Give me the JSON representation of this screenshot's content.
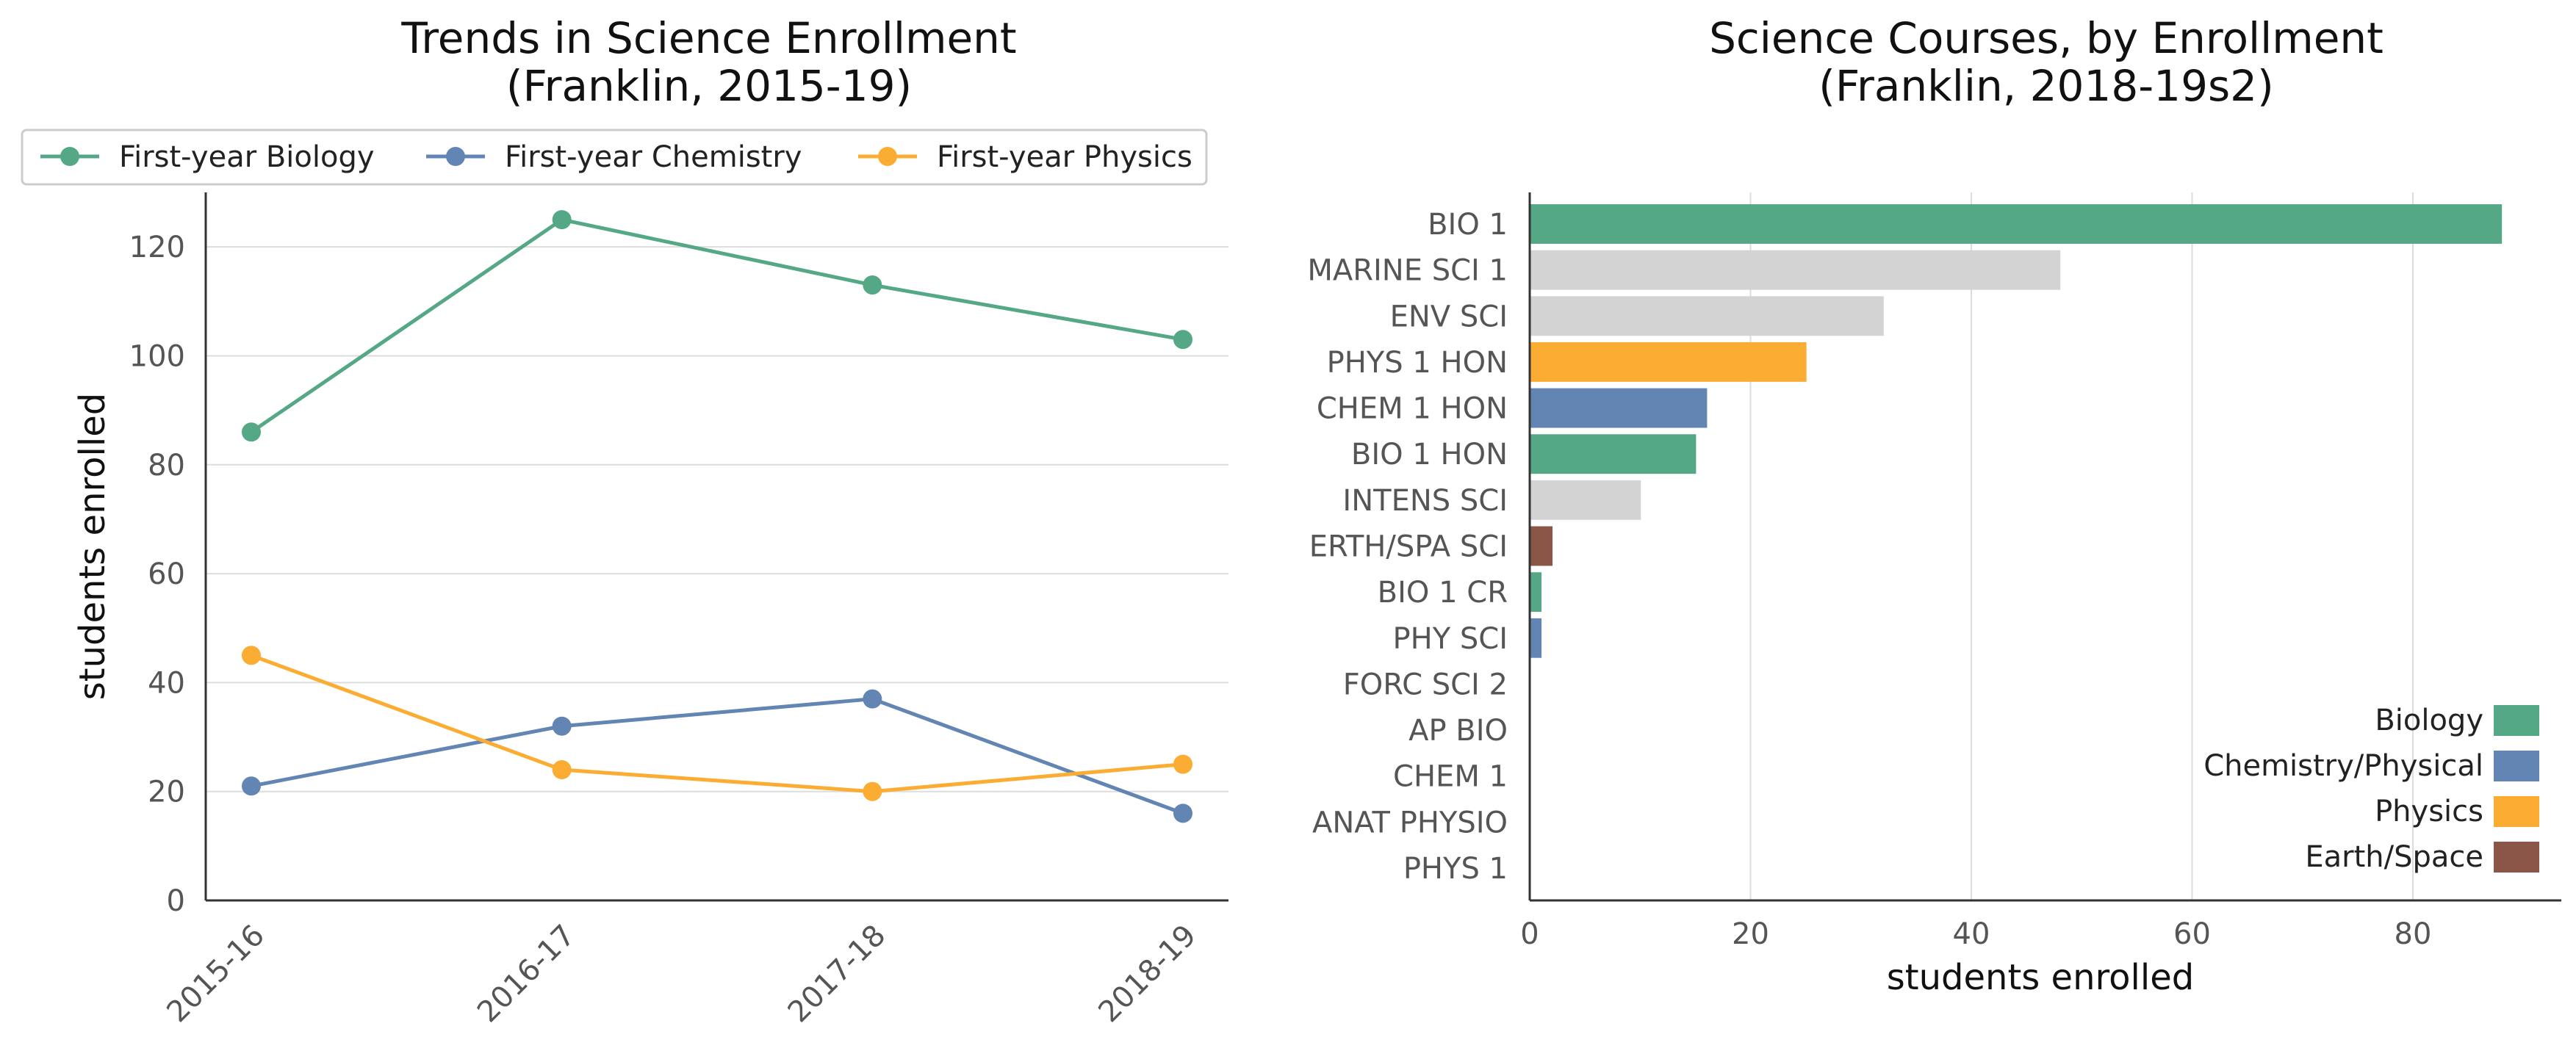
{
  "chart_data": [
    {
      "type": "line",
      "title": "Trends in Science Enrollment\n(Franklin, 2015-19)",
      "ylabel": "students enrolled",
      "xlabel": "",
      "x": [
        "2015-16",
        "2016-17",
        "2017-18",
        "2018-19"
      ],
      "ylim": [
        0,
        130
      ],
      "yticks": [
        0,
        20,
        40,
        60,
        80,
        100,
        120
      ],
      "grid": "horizontal",
      "legend_position": "top",
      "series": [
        {
          "name": "First-year Biology",
          "color": "#55a886",
          "values": [
            86,
            125,
            113,
            103
          ]
        },
        {
          "name": "First-year Chemistry",
          "color": "#6385b4",
          "values": [
            21,
            32,
            37,
            16
          ]
        },
        {
          "name": "First-year Physics",
          "color": "#fbac33",
          "values": [
            45,
            24,
            20,
            25
          ]
        }
      ]
    },
    {
      "type": "bar",
      "orientation": "horizontal",
      "title": "Science Courses, by Enrollment\n(Franklin, 2018-19s2)",
      "xlabel": "students enrolled",
      "ylabel": "",
      "xlim": [
        0,
        90
      ],
      "xticks": [
        0,
        20,
        40,
        60,
        80
      ],
      "grid": "vertical",
      "legend_position": "lower-right",
      "categories": [
        "BIO 1",
        "MARINE SCI 1",
        "ENV SCI",
        "PHYS 1 HON",
        "CHEM 1 HON",
        "BIO 1 HON",
        "INTENS SCI",
        "ERTH/SPA SCI",
        "BIO 1 CR",
        "PHY SCI",
        "FORC SCI 2",
        "AP BIO",
        "CHEM 1",
        "ANAT PHYSIO",
        "PHYS 1"
      ],
      "values": [
        88,
        48,
        32,
        25,
        16,
        15,
        10,
        2,
        1,
        1,
        0,
        0,
        0,
        0,
        0
      ],
      "groups": [
        "Biology",
        "Other",
        "Other",
        "Physics",
        "Chemistry/Physical",
        "Biology",
        "Other",
        "Earth/Space",
        "Biology",
        "Chemistry/Physical",
        "Other",
        "Biology",
        "Chemistry/Physical",
        "Biology",
        "Physics"
      ],
      "group_colors": {
        "Biology": "#55a886",
        "Chemistry/Physical": "#6385b4",
        "Physics": "#fbac33",
        "Earth/Space": "#8b5548",
        "Other": "#d3d3d3"
      },
      "legend": [
        "Biology",
        "Chemistry/Physical",
        "Physics",
        "Earth/Space"
      ]
    }
  ]
}
